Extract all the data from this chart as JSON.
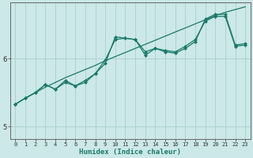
{
  "xlabel": "Humidex (Indice chaleur)",
  "bg_color": "#cce8e8",
  "line_color": "#1a7a6a",
  "grid_color": "#aacece",
  "xlim": [
    -0.5,
    23.5
  ],
  "ylim": [
    4.82,
    6.82
  ],
  "xticks": [
    0,
    1,
    2,
    3,
    4,
    5,
    6,
    7,
    8,
    9,
    10,
    11,
    12,
    13,
    14,
    15,
    16,
    17,
    18,
    19,
    20,
    21,
    22,
    23
  ],
  "yticks": [
    5,
    6
  ],
  "line1_x": [
    0,
    1,
    2,
    3,
    4,
    5,
    6,
    7,
    8,
    9,
    10,
    11,
    12,
    13,
    14,
    15,
    16,
    17,
    18,
    19,
    20,
    21,
    22,
    23
  ],
  "line1_y": [
    5.33,
    5.42,
    5.5,
    5.58,
    5.65,
    5.72,
    5.78,
    5.84,
    5.9,
    5.97,
    6.03,
    6.09,
    6.15,
    6.21,
    6.27,
    6.33,
    6.39,
    6.45,
    6.51,
    6.57,
    6.63,
    6.68,
    6.72,
    6.76
  ],
  "line2_x": [
    0,
    1,
    2,
    3,
    4,
    5,
    6,
    7,
    8,
    9,
    10,
    11,
    12,
    13,
    14,
    15,
    16,
    17,
    18,
    19,
    20,
    21,
    22,
    23
  ],
  "line2_y": [
    5.33,
    5.42,
    5.5,
    5.62,
    5.55,
    5.65,
    5.6,
    5.68,
    5.78,
    5.98,
    6.28,
    6.3,
    6.28,
    6.1,
    6.15,
    6.12,
    6.1,
    6.18,
    6.28,
    6.55,
    6.62,
    6.62,
    6.18,
    6.2
  ],
  "line3_x": [
    0,
    1,
    2,
    3,
    4,
    5,
    6,
    7,
    8,
    9,
    10,
    11,
    12,
    13,
    14,
    15,
    16,
    17,
    18,
    19,
    20,
    21,
    22,
    23
  ],
  "line3_y": [
    5.33,
    5.42,
    5.5,
    5.62,
    5.55,
    5.68,
    5.6,
    5.65,
    5.78,
    5.93,
    6.32,
    6.3,
    6.28,
    6.05,
    6.15,
    6.1,
    6.08,
    6.15,
    6.25,
    6.58,
    6.65,
    6.65,
    6.2,
    6.22
  ],
  "marker_size": 2.5,
  "line_width": 0.9
}
